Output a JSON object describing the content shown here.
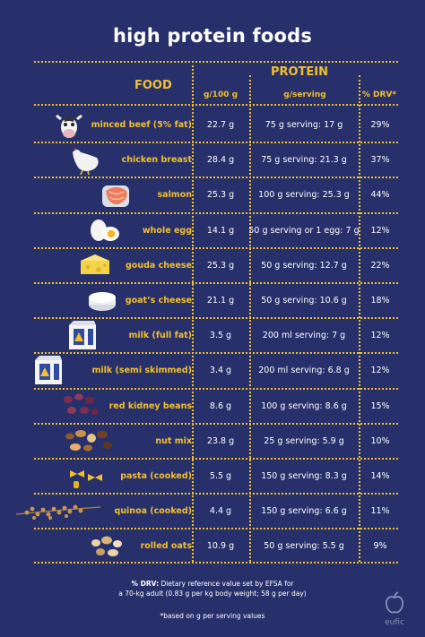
{
  "title": "high protein foods",
  "headers": {
    "food": "FOOD",
    "protein": "PROTEIN",
    "per100": "g/100 g",
    "perServing": "g/serving",
    "drv": "% DRV*"
  },
  "rows": [
    {
      "food": "minced beef (5% fat)",
      "per100": "22.7 g",
      "serving": "75 g serving: 17 g",
      "drv": "29%",
      "icon": "cow-icon"
    },
    {
      "food": "chicken breast",
      "per100": "28.4 g",
      "serving": "75 g serving: 21.3 g",
      "drv": "37%",
      "icon": "chicken-icon"
    },
    {
      "food": "salmon",
      "per100": "25.3 g",
      "serving": "100 g serving: 25.3 g",
      "drv": "44%",
      "icon": "salmon-icon"
    },
    {
      "food": "whole egg",
      "per100": "14.1 g",
      "serving": "50 g serving or 1 egg: 7 g",
      "drv": "12%",
      "icon": "egg-icon"
    },
    {
      "food": "gouda cheese",
      "per100": "25.3 g",
      "serving": "50 g serving: 12.7 g",
      "drv": "22%",
      "icon": "cheese-icon"
    },
    {
      "food": "goat’s cheese",
      "per100": "21.1 g",
      "serving": "50 g serving: 10.6 g",
      "drv": "18%",
      "icon": "goat-cheese-icon"
    },
    {
      "food": "milk (full fat)",
      "per100": "3.5 g",
      "serving": "200 ml serving: 7 g",
      "drv": "12%",
      "icon": "milk-carton-icon"
    },
    {
      "food": "milk (semi skimmed)",
      "per100": "3.4 g",
      "serving": "200 ml serving: 6.8 g",
      "drv": "12%",
      "icon": "milk-carton-icon"
    },
    {
      "food": "red kidney beans",
      "per100": "8.6 g",
      "serving": "100 g serving: 8.6 g",
      "drv": "15%",
      "icon": "beans-icon"
    },
    {
      "food": "nut mix",
      "per100": "23.8 g",
      "serving": "25 g serving: 5.9 g",
      "drv": "10%",
      "icon": "nuts-icon"
    },
    {
      "food": "pasta (cooked)",
      "per100": "5.5 g",
      "serving": "150 g serving: 8.3 g",
      "drv": "14%",
      "icon": "pasta-icon"
    },
    {
      "food": "quinoa (cooked)",
      "per100": "4.4 g",
      "serving": "150 g serving: 6.6 g",
      "drv": "11%",
      "icon": "quinoa-icon"
    },
    {
      "food": "rolled oats",
      "per100": "10.9 g",
      "serving": "50 g serving: 5.5 g",
      "drv": "9%",
      "icon": "oats-icon"
    }
  ],
  "footnote": {
    "drv_label": "% DRV:",
    "drv_text": " Dietary reference value set by EFSA for",
    "drv_text2": "a 70-kg adult (0.83 g per kg body weight; 58 g per day)",
    "serving_note": "*based on g per serving values"
  },
  "brand": "eufic",
  "colors": {
    "background": "#27306b",
    "accent": "#f2c02c",
    "text": "#ffffff"
  }
}
